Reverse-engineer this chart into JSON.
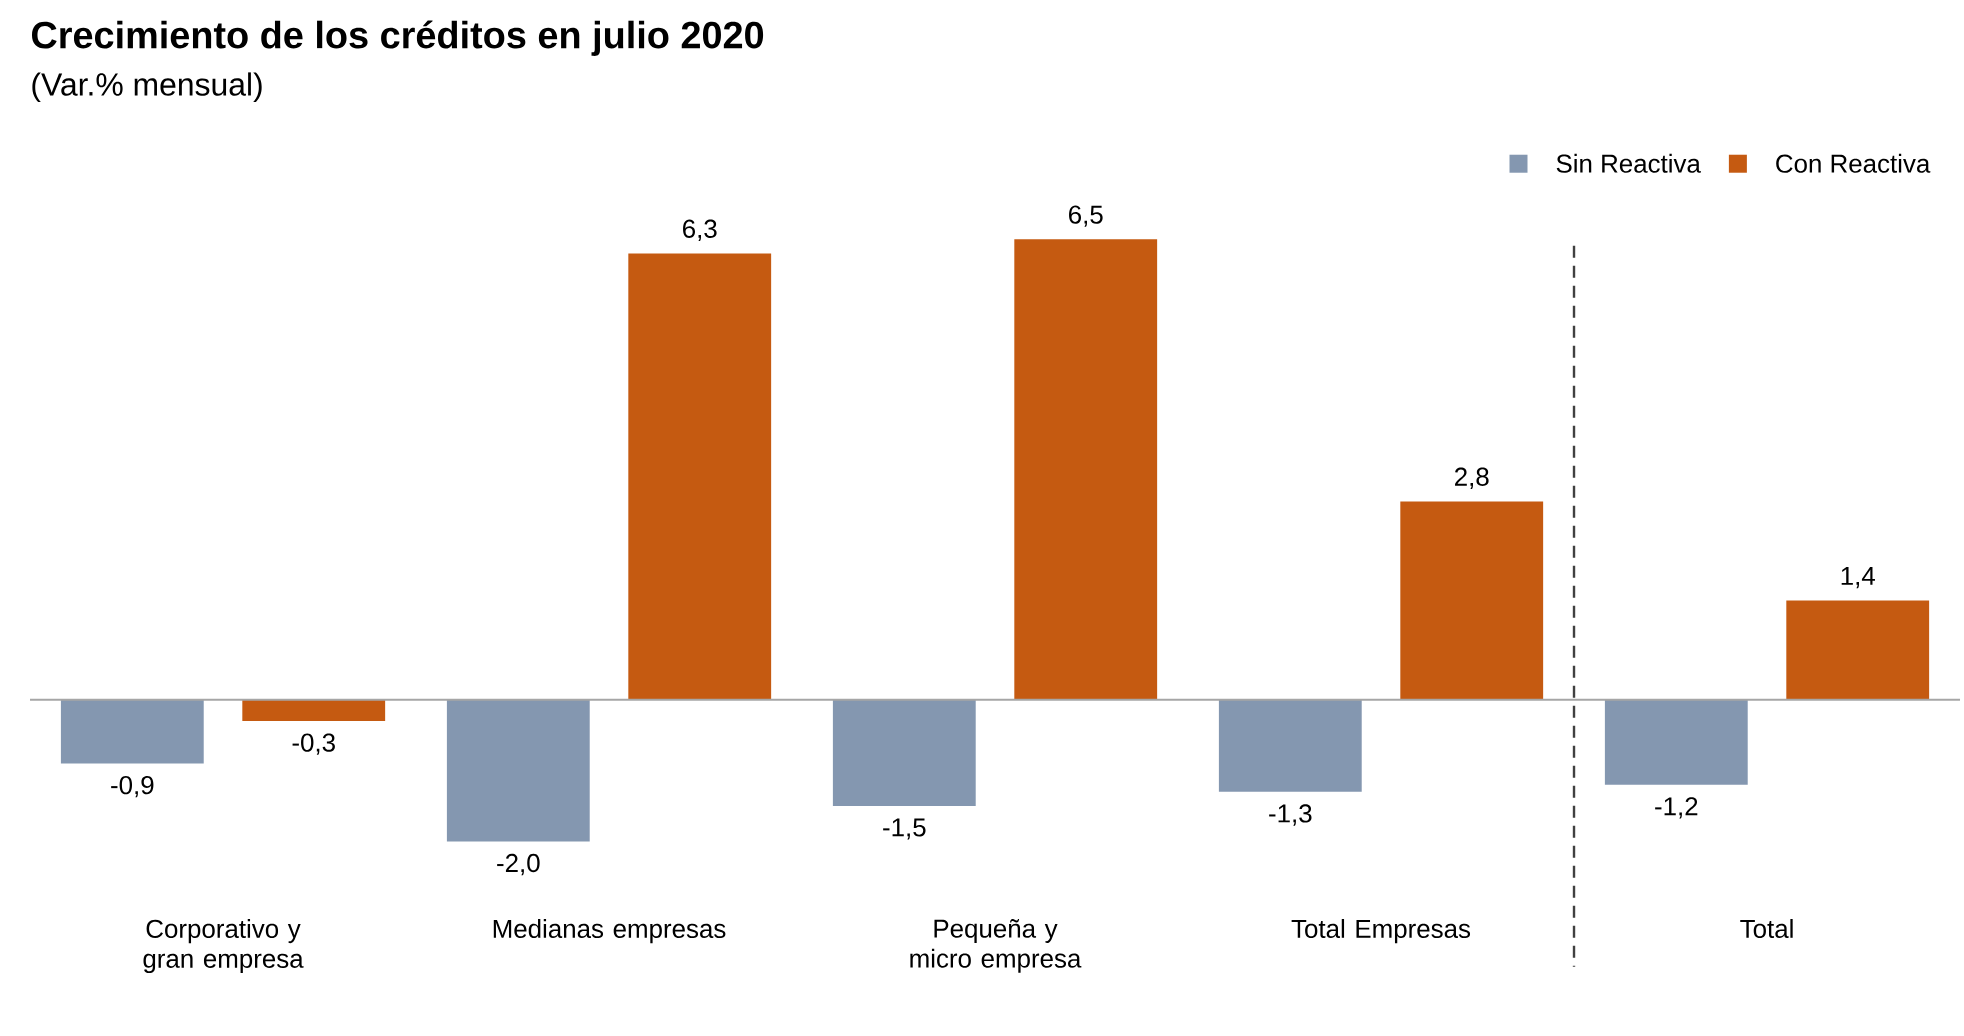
{
  "chart_data": {
    "type": "bar",
    "title": "Crecimiento de los créditos en julio 2020",
    "subtitle": "(Var.% mensual)",
    "categories": [
      "Corporativo y gran empresa",
      "Medianas empresas",
      "Pequeña y micro empresa",
      "Total Empresas",
      "Total"
    ],
    "series": [
      {
        "name": "Sin Reactiva",
        "color": "#8497b0",
        "values": [
          -0.9,
          -2.0,
          -1.5,
          -1.3,
          -1.2
        ],
        "value_labels": [
          "-0,9",
          "-2,0",
          "-1,5",
          "-1,3",
          "-1,2"
        ]
      },
      {
        "name": "Con Reactiva",
        "color": "#c55a11",
        "values": [
          -0.3,
          6.3,
          6.5,
          2.8,
          1.4
        ],
        "value_labels": [
          "-0,3",
          "6,3",
          "6,5",
          "2,8",
          "1,4"
        ]
      }
    ],
    "legend": "top right"
  }
}
